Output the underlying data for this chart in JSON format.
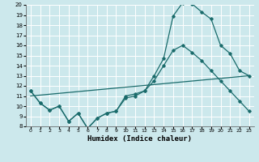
{
  "title": "",
  "xlabel": "Humidex (Indice chaleur)",
  "bg_color": "#cce8ec",
  "grid_color": "#ffffff",
  "line_color": "#1a6b6b",
  "xlim": [
    -0.5,
    23.5
  ],
  "ylim": [
    8,
    20
  ],
  "xticks": [
    0,
    1,
    2,
    3,
    4,
    5,
    6,
    7,
    8,
    9,
    10,
    11,
    12,
    13,
    14,
    15,
    16,
    17,
    18,
    19,
    20,
    21,
    22,
    23
  ],
  "yticks": [
    8,
    9,
    10,
    11,
    12,
    13,
    14,
    15,
    16,
    17,
    18,
    19,
    20
  ],
  "line1_x": [
    0,
    1,
    2,
    3,
    4,
    5,
    6,
    7,
    8,
    9,
    10,
    11,
    12,
    13,
    14,
    15,
    16,
    17,
    18,
    19,
    20,
    21,
    22,
    23
  ],
  "line1_y": [
    11.5,
    10.3,
    9.6,
    10.0,
    8.5,
    9.3,
    7.8,
    8.8,
    9.3,
    9.5,
    11.0,
    11.2,
    11.5,
    13.0,
    14.7,
    18.9,
    20.2,
    20.1,
    19.3,
    18.6,
    16.0,
    15.2,
    13.5,
    13.0
  ],
  "line2_x": [
    0,
    1,
    2,
    3,
    4,
    5,
    6,
    7,
    8,
    9,
    10,
    11,
    12,
    13,
    14,
    15,
    16,
    17,
    18,
    19,
    20,
    21,
    22,
    23
  ],
  "line2_y": [
    11.5,
    10.3,
    9.6,
    10.0,
    8.5,
    9.3,
    7.8,
    8.8,
    9.3,
    9.5,
    10.8,
    11.0,
    11.5,
    12.5,
    14.0,
    15.5,
    16.0,
    15.3,
    14.5,
    13.5,
    12.5,
    11.5,
    10.5,
    9.5
  ],
  "line3_x": [
    0,
    23
  ],
  "line3_y": [
    11.0,
    13.0
  ]
}
